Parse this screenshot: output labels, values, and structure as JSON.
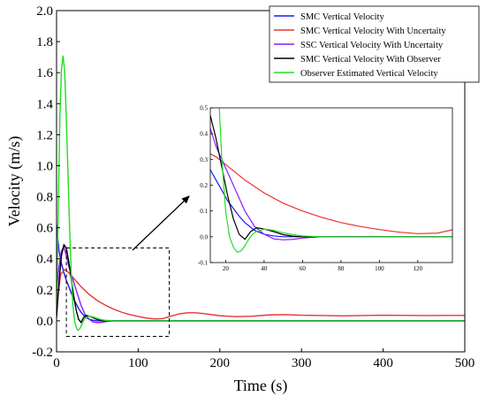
{
  "chart_data": {
    "type": "line",
    "xlabel": "Time (s)",
    "ylabel": "Velocity (m/s)",
    "xlim": [
      0,
      500
    ],
    "ylim": [
      -0.2,
      2.0
    ],
    "xticks": [
      0,
      100,
      200,
      300,
      400,
      500
    ],
    "yticks": [
      -0.2,
      0.0,
      0.2,
      0.4,
      0.6,
      0.8,
      1.0,
      1.2,
      1.4,
      1.6,
      1.8,
      2.0
    ],
    "grid": false,
    "legend_position": "top-right",
    "series": [
      {
        "name": "SMC Vertical Velocity",
        "color": "#1a1aff",
        "x": [
          0,
          3,
          6,
          9,
          12,
          15,
          18,
          21,
          24,
          27,
          30,
          35,
          40,
          45,
          50,
          60,
          70,
          80,
          100,
          150,
          200,
          300,
          400,
          500
        ],
        "y": [
          0.62,
          0.45,
          0.37,
          0.31,
          0.26,
          0.22,
          0.18,
          0.14,
          0.11,
          0.08,
          0.055,
          0.025,
          0.01,
          0.003,
          0,
          0,
          0,
          0,
          0,
          0,
          0,
          0,
          0,
          0
        ]
      },
      {
        "name": "SMC Vertical Velocity With Uncertaity",
        "color": "#e83333",
        "x": [
          0,
          5,
          10,
          15,
          20,
          30,
          40,
          50,
          60,
          70,
          80,
          90,
          100,
          110,
          120,
          130,
          140,
          150,
          160,
          170,
          180,
          190,
          200,
          220,
          240,
          260,
          280,
          300,
          350,
          400,
          450,
          500
        ],
        "y": [
          0.08,
          0.3,
          0.33,
          0.31,
          0.28,
          0.22,
          0.17,
          0.13,
          0.1,
          0.075,
          0.055,
          0.04,
          0.028,
          0.018,
          0.012,
          0.014,
          0.03,
          0.045,
          0.052,
          0.052,
          0.047,
          0.04,
          0.033,
          0.027,
          0.03,
          0.038,
          0.04,
          0.036,
          0.032,
          0.036,
          0.034,
          0.035
        ]
      },
      {
        "name": "SSC Vertical Velocity With Uncertaity",
        "color": "#8a1aff",
        "x": [
          0,
          3,
          6,
          9,
          12,
          15,
          18,
          21,
          24,
          27,
          30,
          35,
          40,
          45,
          50,
          55,
          60,
          65,
          70,
          80,
          100,
          150,
          200,
          300,
          400,
          500
        ],
        "y": [
          0.2,
          0.35,
          0.45,
          0.48,
          0.42,
          0.35,
          0.3,
          0.25,
          0.2,
          0.15,
          0.1,
          0.04,
          0.01,
          -0.008,
          -0.012,
          -0.01,
          -0.005,
          -0.002,
          0,
          0,
          0,
          0,
          0,
          0,
          0,
          0
        ]
      },
      {
        "name": "SMC Vertical Velocity With Observer",
        "color": "#000000",
        "x": [
          0,
          3,
          6,
          9,
          12,
          15,
          18,
          21,
          24,
          27,
          30,
          33,
          36,
          40,
          45,
          50,
          55,
          60,
          70,
          80,
          100,
          150,
          200,
          300,
          400,
          500
        ],
        "y": [
          0.02,
          0.25,
          0.42,
          0.49,
          0.47,
          0.38,
          0.27,
          0.16,
          0.07,
          0.01,
          -0.01,
          0.02,
          0.035,
          0.03,
          0.02,
          0.008,
          0.002,
          0,
          0,
          0,
          0,
          0,
          0,
          0,
          0,
          0
        ]
      },
      {
        "name": "Observer Estimated Vertical Velocity",
        "color": "#22dd22",
        "x": [
          0,
          2,
          4,
          6,
          8,
          10,
          12,
          14,
          16,
          18,
          20,
          22,
          24,
          26,
          28,
          30,
          32,
          34,
          36,
          40,
          45,
          50,
          55,
          60,
          70,
          80,
          100,
          150,
          200,
          300,
          400,
          500
        ],
        "y": [
          0.1,
          0.7,
          1.3,
          1.62,
          1.71,
          1.6,
          1.3,
          0.95,
          0.6,
          0.3,
          0.1,
          0.0,
          -0.04,
          -0.06,
          -0.055,
          -0.035,
          -0.01,
          0.01,
          0.02,
          0.03,
          0.025,
          0.015,
          0.008,
          0.003,
          0,
          0,
          0,
          0,
          0,
          0,
          0,
          0
        ]
      }
    ],
    "inset": {
      "xlim": [
        12,
        138
      ],
      "ylim": [
        -0.1,
        0.5
      ],
      "xticks": [
        20,
        40,
        60,
        80,
        100,
        120
      ],
      "yticks": [
        -0.1,
        0.0,
        0.1,
        0.2,
        0.3,
        0.4,
        0.5
      ],
      "xticklabels": [
        "20",
        "40",
        "60",
        "80",
        "100",
        "120"
      ],
      "yticklabels": [
        "-0.1",
        "0.0",
        "0.1",
        "0.2",
        "0.3",
        "0.4",
        "0.5"
      ]
    },
    "zoom_box": {
      "xlim": [
        12,
        138
      ],
      "ylim": [
        -0.1,
        0.47
      ]
    }
  }
}
